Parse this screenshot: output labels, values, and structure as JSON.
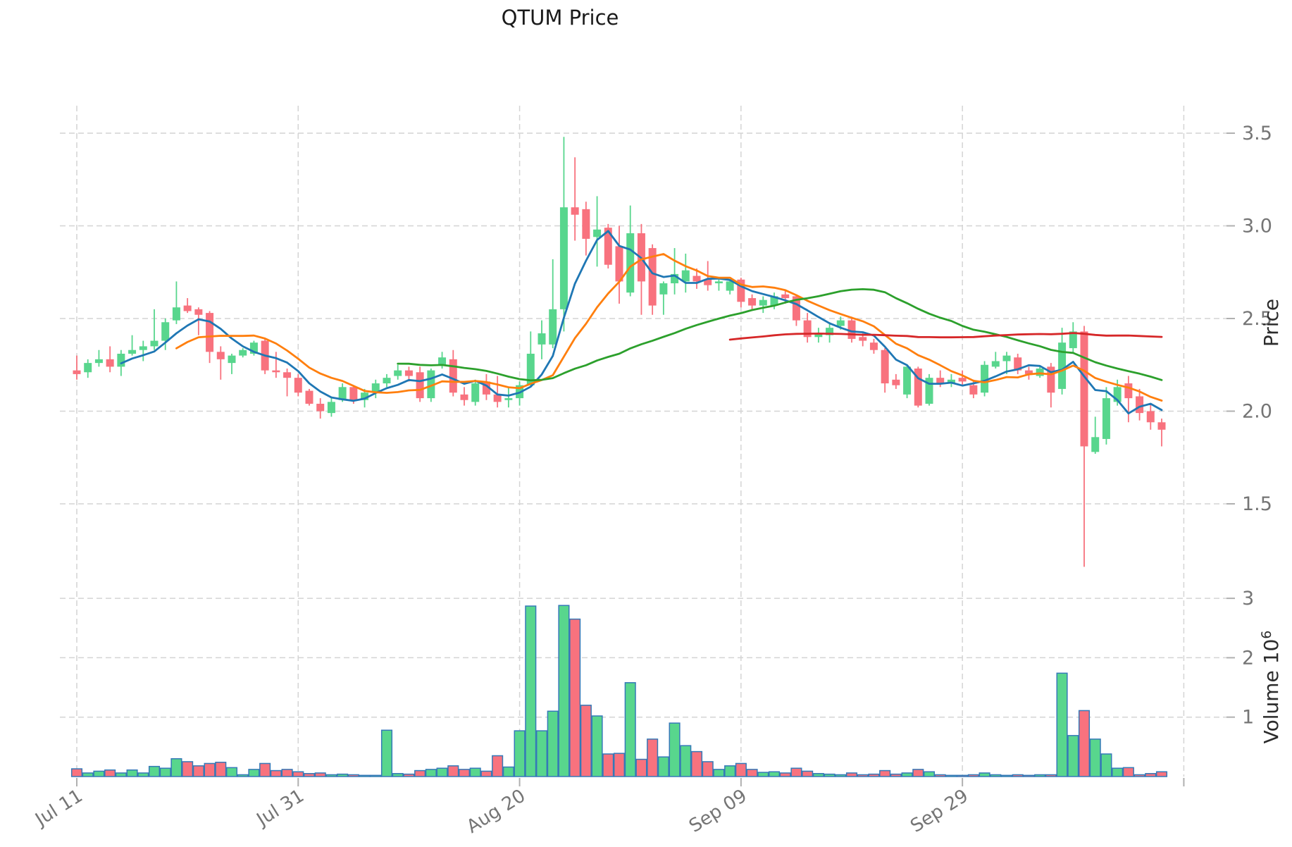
{
  "title": "QTUM Price",
  "chart_data": {
    "type": "candlestick",
    "title": "QTUM Price",
    "panels": [
      "price",
      "volume"
    ],
    "ylabel_right": "Price",
    "volume_ylabel_right": "Volume 10^6",
    "volume_unit": "10^6",
    "grid": "dashed",
    "x_tick_labels": [
      "Jul 11",
      "Jul 31",
      "Aug 20",
      "Sep 09",
      "Sep 29"
    ],
    "x_tick_days": [
      0,
      20,
      40,
      60,
      80,
      100
    ],
    "price_tick_labels": [
      "3.5",
      "3.0",
      "2.5",
      "2.0",
      "1.5"
    ],
    "price_ticks": [
      3.5,
      3.0,
      2.5,
      2.0,
      1.5
    ],
    "volume_tick_labels": [
      "3",
      "2",
      "1"
    ],
    "volume_ticks": [
      3,
      2,
      1
    ],
    "price_range": [
      1.06,
      3.65
    ],
    "volume_range": [
      0,
      3.1
    ],
    "colors": {
      "up": "#58d68d",
      "down": "#f8727e",
      "volume_edge": "#3579b8",
      "grid": "#d4d4d4",
      "tick_text": "#757575",
      "axis_label_text": "#2b2b2b",
      "title_text": "#1a1a1a",
      "mav": [
        "#1f77b4",
        "#ff7f0e",
        "#2ca02c",
        "#d62728"
      ]
    },
    "moving_averages": [
      {
        "period": 5,
        "color": "#1f77b4"
      },
      {
        "period": 10,
        "color": "#ff7f0e"
      },
      {
        "period": 30,
        "color": "#2ca02c"
      },
      {
        "period": 60,
        "color": "#d62728"
      }
    ],
    "series": {
      "date": [
        "Jul 11",
        "Jul 12",
        "Jul 13",
        "Jul 14",
        "Jul 15",
        "Jul 16",
        "Jul 17",
        "Jul 18",
        "Jul 19",
        "Jul 20",
        "Jul 21",
        "Jul 22",
        "Jul 23",
        "Jul 24",
        "Jul 25",
        "Jul 26",
        "Jul 27",
        "Jul 28",
        "Jul 29",
        "Jul 30",
        "Jul 31",
        "Aug 01",
        "Aug 02",
        "Aug 03",
        "Aug 04",
        "Aug 05",
        "Aug 06",
        "Aug 07",
        "Aug 08",
        "Aug 09",
        "Aug 10",
        "Aug 11",
        "Aug 12",
        "Aug 13",
        "Aug 14",
        "Aug 15",
        "Aug 16",
        "Aug 17",
        "Aug 18",
        "Aug 19",
        "Aug 20",
        "Aug 21",
        "Aug 22",
        "Aug 23",
        "Aug 24",
        "Aug 25",
        "Aug 26",
        "Aug 27",
        "Aug 28",
        "Aug 29",
        "Aug 30",
        "Aug 31",
        "Sep 01",
        "Sep 02",
        "Sep 03",
        "Sep 04",
        "Sep 05",
        "Sep 06",
        "Sep 07",
        "Sep 08",
        "Sep 09",
        "Sep 10",
        "Sep 11",
        "Sep 12",
        "Sep 13",
        "Sep 14",
        "Sep 15",
        "Sep 16",
        "Sep 17",
        "Sep 18",
        "Sep 19",
        "Sep 20",
        "Sep 21",
        "Sep 22",
        "Sep 23",
        "Sep 24",
        "Sep 25",
        "Sep 26",
        "Sep 27",
        "Sep 28",
        "Sep 29",
        "Sep 30",
        "Oct 01",
        "Oct 02",
        "Oct 03",
        "Oct 04",
        "Oct 05",
        "Oct 06",
        "Oct 07",
        "Oct 08",
        "Oct 09",
        "Oct 10",
        "Oct 11",
        "Oct 12",
        "Oct 13",
        "Oct 14",
        "Oct 15",
        "Oct 16",
        "Oct 17"
      ],
      "open": [
        2.22,
        2.21,
        2.26,
        2.28,
        2.24,
        2.31,
        2.33,
        2.35,
        2.38,
        2.49,
        2.57,
        2.55,
        2.53,
        2.32,
        2.26,
        2.3,
        2.31,
        2.38,
        2.22,
        2.21,
        2.18,
        2.11,
        2.04,
        1.99,
        2.06,
        2.13,
        2.06,
        2.1,
        2.15,
        2.19,
        2.22,
        2.21,
        2.07,
        2.25,
        2.28,
        2.09,
        2.05,
        2.16,
        2.09,
        2.06,
        2.07,
        2.14,
        2.36,
        2.36,
        2.55,
        3.1,
        3.09,
        2.94,
        2.99,
        2.89,
        2.64,
        2.96,
        2.88,
        2.63,
        2.69,
        2.7,
        2.73,
        2.71,
        2.69,
        2.65,
        2.71,
        2.61,
        2.57,
        2.57,
        2.63,
        2.62,
        2.49,
        2.4,
        2.41,
        2.46,
        2.49,
        2.4,
        2.37,
        2.33,
        2.17,
        2.09,
        2.23,
        2.04,
        2.18,
        2.15,
        2.18,
        2.14,
        2.1,
        2.24,
        2.27,
        2.29,
        2.22,
        2.19,
        2.24,
        2.12,
        2.34,
        2.43,
        1.78,
        1.85,
        2.05,
        2.15,
        2.08,
        2.0,
        1.94
      ],
      "high": [
        2.3,
        2.28,
        2.33,
        2.35,
        2.33,
        2.41,
        2.38,
        2.55,
        2.5,
        2.7,
        2.61,
        2.56,
        2.54,
        2.35,
        2.31,
        2.34,
        2.38,
        2.39,
        2.32,
        2.23,
        2.2,
        2.12,
        2.07,
        2.07,
        2.15,
        2.14,
        2.12,
        2.17,
        2.2,
        2.25,
        2.24,
        2.24,
        2.23,
        2.32,
        2.33,
        2.13,
        2.17,
        2.2,
        2.19,
        2.13,
        2.16,
        2.43,
        2.49,
        2.82,
        3.48,
        3.37,
        3.13,
        3.16,
        3.01,
        3.0,
        3.11,
        3.01,
        2.9,
        2.7,
        2.88,
        2.85,
        2.77,
        2.81,
        2.71,
        2.71,
        2.72,
        2.63,
        2.62,
        2.64,
        2.65,
        2.63,
        2.53,
        2.45,
        2.48,
        2.51,
        2.51,
        2.42,
        2.39,
        2.34,
        2.2,
        2.25,
        2.24,
        2.2,
        2.22,
        2.2,
        2.22,
        2.17,
        2.27,
        2.32,
        2.32,
        2.31,
        2.24,
        2.24,
        2.26,
        2.45,
        2.48,
        2.46,
        1.97,
        2.13,
        2.17,
        2.19,
        2.12,
        2.04,
        1.96
      ],
      "low": [
        2.17,
        2.18,
        2.24,
        2.21,
        2.19,
        2.3,
        2.27,
        2.33,
        2.33,
        2.47,
        2.53,
        2.41,
        2.26,
        2.17,
        2.2,
        2.29,
        2.3,
        2.2,
        2.18,
        2.08,
        2.08,
        2.03,
        1.96,
        1.97,
        2.05,
        2.04,
        2.02,
        2.07,
        2.13,
        2.17,
        2.16,
        2.05,
        2.05,
        2.23,
        2.08,
        2.03,
        2.03,
        2.06,
        2.02,
        2.02,
        2.03,
        2.13,
        2.28,
        2.34,
        2.43,
        2.92,
        2.84,
        2.78,
        2.77,
        2.58,
        2.62,
        2.52,
        2.52,
        2.52,
        2.63,
        2.64,
        2.66,
        2.65,
        2.65,
        2.63,
        2.56,
        2.55,
        2.53,
        2.55,
        2.58,
        2.46,
        2.37,
        2.37,
        2.37,
        2.44,
        2.37,
        2.35,
        2.31,
        2.1,
        2.12,
        2.07,
        2.02,
        2.03,
        2.13,
        2.13,
        2.14,
        2.07,
        2.08,
        2.23,
        2.2,
        2.2,
        2.17,
        2.18,
        2.02,
        2.09,
        2.31,
        1.16,
        1.77,
        1.82,
        2.03,
        1.94,
        1.95,
        1.9,
        1.81
      ],
      "close": [
        2.2,
        2.26,
        2.28,
        2.24,
        2.31,
        2.33,
        2.35,
        2.38,
        2.48,
        2.56,
        2.54,
        2.52,
        2.32,
        2.28,
        2.3,
        2.33,
        2.37,
        2.22,
        2.21,
        2.18,
        2.1,
        2.04,
        2.0,
        2.05,
        2.13,
        2.06,
        2.1,
        2.15,
        2.18,
        2.22,
        2.19,
        2.07,
        2.22,
        2.29,
        2.1,
        2.06,
        2.15,
        2.09,
        2.05,
        2.07,
        2.14,
        2.31,
        2.42,
        2.55,
        3.1,
        3.06,
        2.93,
        2.98,
        2.79,
        2.7,
        2.96,
        2.7,
        2.57,
        2.69,
        2.74,
        2.76,
        2.7,
        2.68,
        2.7,
        2.7,
        2.59,
        2.57,
        2.6,
        2.62,
        2.61,
        2.49,
        2.4,
        2.42,
        2.45,
        2.49,
        2.39,
        2.38,
        2.33,
        2.15,
        2.14,
        2.24,
        2.03,
        2.18,
        2.15,
        2.17,
        2.16,
        2.09,
        2.25,
        2.27,
        2.3,
        2.22,
        2.2,
        2.23,
        2.1,
        2.37,
        2.43,
        1.81,
        1.86,
        2.07,
        2.13,
        2.07,
        1.99,
        1.94,
        1.9
      ],
      "volume": [
        0.13,
        0.06,
        0.09,
        0.11,
        0.06,
        0.11,
        0.06,
        0.17,
        0.14,
        0.3,
        0.25,
        0.18,
        0.22,
        0.24,
        0.15,
        0.03,
        0.12,
        0.22,
        0.1,
        0.12,
        0.08,
        0.05,
        0.06,
        0.03,
        0.04,
        0.03,
        0.02,
        0.02,
        0.78,
        0.05,
        0.04,
        0.1,
        0.12,
        0.14,
        0.18,
        0.12,
        0.14,
        0.09,
        0.35,
        0.16,
        0.77,
        2.87,
        0.77,
        1.1,
        2.88,
        2.65,
        1.2,
        1.02,
        0.38,
        0.39,
        1.58,
        0.29,
        0.63,
        0.33,
        0.9,
        0.52,
        0.42,
        0.25,
        0.12,
        0.18,
        0.22,
        0.12,
        0.07,
        0.08,
        0.06,
        0.14,
        0.09,
        0.05,
        0.04,
        0.03,
        0.06,
        0.03,
        0.04,
        0.1,
        0.04,
        0.06,
        0.12,
        0.08,
        0.03,
        0.02,
        0.02,
        0.03,
        0.06,
        0.03,
        0.02,
        0.03,
        0.02,
        0.03,
        0.03,
        1.74,
        0.69,
        1.11,
        0.63,
        0.38,
        0.14,
        0.15,
        0.03,
        0.05,
        0.08
      ]
    }
  }
}
